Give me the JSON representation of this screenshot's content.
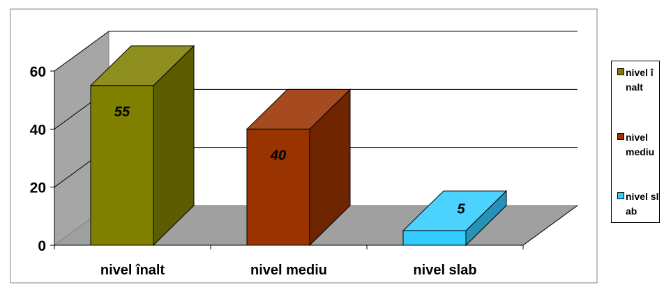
{
  "chart_data": {
    "type": "bar",
    "style": "3d",
    "categories": [
      "nivel înalt",
      "nivel mediu",
      "nivel slab"
    ],
    "values": [
      55,
      40,
      5
    ],
    "colors": [
      "#808000",
      "#993300",
      "#33CCFF"
    ],
    "ylim": [
      0,
      60
    ],
    "yticks": [
      "0",
      "20",
      "40",
      "60"
    ],
    "grid": true,
    "legend_position": "right",
    "legend": [
      "nivel înalt",
      "nivel mediu",
      "nivel slab"
    ]
  }
}
